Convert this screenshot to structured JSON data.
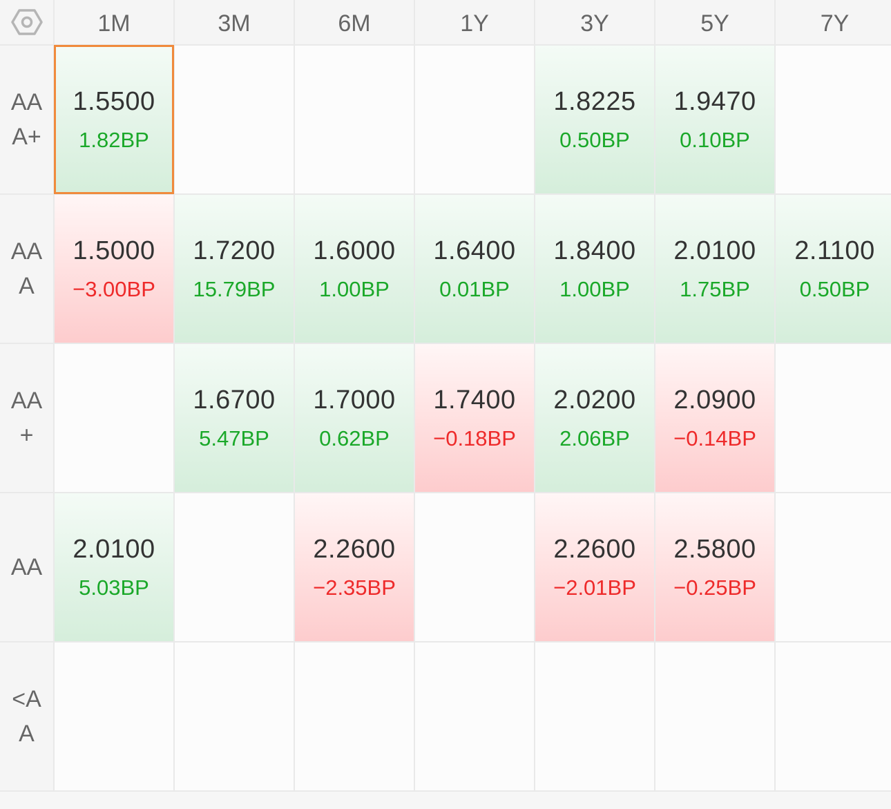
{
  "columns": [
    "1M",
    "3M",
    "6M",
    "1Y",
    "3Y",
    "5Y",
    "7Y"
  ],
  "rows": [
    {
      "label": "AAA+",
      "cells": [
        {
          "rate": "1.5500",
          "change": "1.82BP",
          "dir": "up",
          "selected": true
        },
        null,
        null,
        null,
        {
          "rate": "1.8225",
          "change": "0.50BP",
          "dir": "up"
        },
        {
          "rate": "1.9470",
          "change": "0.10BP",
          "dir": "up"
        },
        null
      ]
    },
    {
      "label": "AAA",
      "cells": [
        {
          "rate": "1.5000",
          "change": "−3.00BP",
          "dir": "down"
        },
        {
          "rate": "1.7200",
          "change": "15.79BP",
          "dir": "up"
        },
        {
          "rate": "1.6000",
          "change": "1.00BP",
          "dir": "up"
        },
        {
          "rate": "1.6400",
          "change": "0.01BP",
          "dir": "up"
        },
        {
          "rate": "1.8400",
          "change": "1.00BP",
          "dir": "up"
        },
        {
          "rate": "2.0100",
          "change": "1.75BP",
          "dir": "up"
        },
        {
          "rate": "2.1100",
          "change": "0.50BP",
          "dir": "up"
        }
      ]
    },
    {
      "label": "AA+",
      "cells": [
        null,
        {
          "rate": "1.6700",
          "change": "5.47BP",
          "dir": "up"
        },
        {
          "rate": "1.7000",
          "change": "0.62BP",
          "dir": "up"
        },
        {
          "rate": "1.7400",
          "change": "−0.18BP",
          "dir": "down"
        },
        {
          "rate": "2.0200",
          "change": "2.06BP",
          "dir": "up"
        },
        {
          "rate": "2.0900",
          "change": "−0.14BP",
          "dir": "down"
        },
        null
      ]
    },
    {
      "label": "AA",
      "cells": [
        {
          "rate": "2.0100",
          "change": "5.03BP",
          "dir": "up"
        },
        null,
        {
          "rate": "2.2600",
          "change": "−2.35BP",
          "dir": "down"
        },
        null,
        {
          "rate": "2.2600",
          "change": "−2.01BP",
          "dir": "down"
        },
        {
          "rate": "2.5800",
          "change": "−0.25BP",
          "dir": "down"
        },
        null
      ]
    },
    {
      "label": "<AA",
      "cells": [
        null,
        null,
        null,
        null,
        null,
        null,
        null
      ]
    }
  ],
  "corner_icon": "hexagon-settings-icon",
  "colors": {
    "up_text": "#1aa829",
    "down_text": "#ee2a2a",
    "selected_border": "#f08a3c"
  }
}
